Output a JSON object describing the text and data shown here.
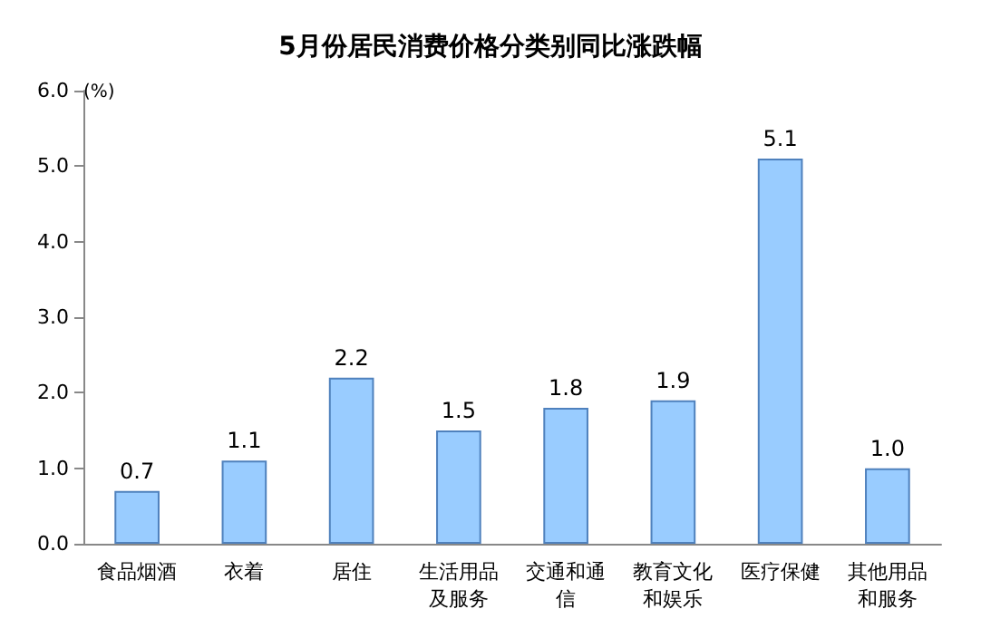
{
  "chart_data": {
    "type": "bar",
    "title": "5月份居民消费价格分类别同比涨跌幅",
    "ylabel": "(%)",
    "categories": [
      "食品烟酒",
      "衣着",
      "居住",
      "生活用品及服务",
      "交通和通信",
      "教育文化和娱乐",
      "医疗保健",
      "其他用品和服务"
    ],
    "values": [
      0.7,
      1.1,
      2.2,
      1.5,
      1.8,
      1.9,
      5.1,
      1.0
    ],
    "value_labels": [
      "0.7",
      "1.1",
      "2.2",
      "1.5",
      "1.8",
      "1.9",
      "5.1",
      "1.0"
    ],
    "color": "#99ccff",
    "ylim": [
      0,
      6
    ],
    "yticks": [
      {
        "value": 0,
        "label": "0.0"
      },
      {
        "value": 1,
        "label": "1.0"
      },
      {
        "value": 2,
        "label": "2.0"
      },
      {
        "value": 3,
        "label": "3.0"
      },
      {
        "value": 4,
        "label": "4.0"
      },
      {
        "value": 5,
        "label": "5.0"
      },
      {
        "value": 6,
        "label": "6.0"
      }
    ],
    "grid": false
  }
}
